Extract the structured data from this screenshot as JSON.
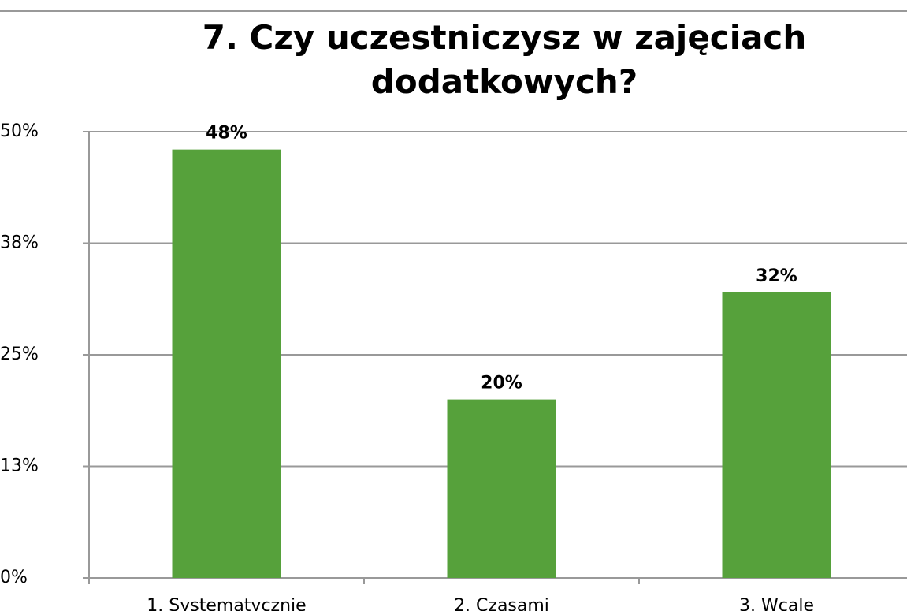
{
  "chart_data": {
    "type": "bar",
    "title": "7. Czy uczestniczysz w zajęciach dodatkowych?",
    "categories": [
      "1. Systematycznie",
      "2. Czasami",
      "3. Wcale"
    ],
    "values": [
      48,
      20,
      32
    ],
    "value_labels": [
      "48%",
      "20%",
      "32%"
    ],
    "color": "#56a13b",
    "ylim": [
      0,
      50
    ],
    "yticks": [
      {
        "value": 0,
        "label": "0%"
      },
      {
        "value": 12.5,
        "label": "13%"
      },
      {
        "value": 25,
        "label": "25%"
      },
      {
        "value": 37.5,
        "label": "38%"
      },
      {
        "value": 50,
        "label": "50%"
      }
    ],
    "grid": true
  }
}
